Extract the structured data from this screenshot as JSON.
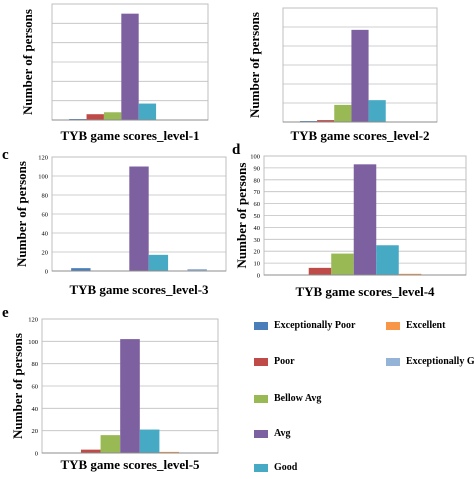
{
  "panel_letters": [
    "",
    "",
    "c",
    "d",
    "e"
  ],
  "chart_data": [
    {
      "type": "bar",
      "title": "TYB game scores_level-1",
      "xlabel": "",
      "ylabel": "Number of persons",
      "categories": [
        "Exceptionally Poor",
        "Poor",
        "Bellow Avg",
        "Avg",
        "Good",
        "Excellent",
        "Exceptionally Good"
      ],
      "values": [
        1,
        6,
        8,
        110,
        17,
        0,
        0
      ],
      "ylim": [
        0,
        120
      ],
      "yticks": [],
      "grid": true
    },
    {
      "type": "bar",
      "title": "TYB game scores_level-2",
      "xlabel": "",
      "ylabel": "Number of persons",
      "categories": [
        "Exceptionally Poor",
        "Poor",
        "Bellow Avg",
        "Avg",
        "Good",
        "Excellent",
        "Exceptionally Good"
      ],
      "values": [
        1,
        2,
        18,
        97,
        23,
        0,
        0
      ],
      "ylim": [
        0,
        120
      ],
      "yticks": [],
      "grid": true
    },
    {
      "type": "bar",
      "title": "TYB game scores_level-3",
      "xlabel": "",
      "ylabel": "Number of persons",
      "categories": [
        "Exceptionally Poor",
        "Poor",
        "Bellow Avg",
        "Avg",
        "Good",
        "Excellent",
        "Exceptionally Good"
      ],
      "values": [
        3,
        0,
        0,
        110,
        17,
        0,
        2
      ],
      "ylim": [
        0,
        120
      ],
      "yticks": [
        0,
        20,
        40,
        60,
        80,
        100,
        120
      ],
      "grid": true
    },
    {
      "type": "bar",
      "title": "TYB game scores_level-4",
      "xlabel": "",
      "ylabel": "Number of persons",
      "categories": [
        "Exceptionally Poor",
        "Poor",
        "Bellow Avg",
        "Avg",
        "Good",
        "Excellent",
        "Exceptionally Good"
      ],
      "values": [
        0,
        6,
        18,
        93,
        25,
        1,
        0
      ],
      "ylim": [
        0,
        100
      ],
      "yticks": [
        0,
        10,
        20,
        30,
        40,
        50,
        60,
        70,
        80,
        90,
        100
      ],
      "grid": true
    },
    {
      "type": "bar",
      "title": "TYB game scores_level-5",
      "xlabel": "",
      "ylabel": "Number of persons",
      "categories": [
        "Exceptionally Poor",
        "Poor",
        "Bellow Avg",
        "Avg",
        "Good",
        "Excellent",
        "Exceptionally Good"
      ],
      "values": [
        0,
        3,
        16,
        102,
        21,
        1,
        0
      ],
      "ylim": [
        0,
        120
      ],
      "yticks": [
        0,
        20,
        40,
        60,
        80,
        100,
        120
      ],
      "grid": true
    }
  ],
  "legend": {
    "items": [
      {
        "label": "Exceptionally Poor",
        "color": "#4a7ebb"
      },
      {
        "label": "Excellent",
        "color": "#f79646"
      },
      {
        "label": "Poor",
        "color": "#be4b48"
      },
      {
        "label": "Exceptionally Good",
        "color": "#95b3d7"
      },
      {
        "label": "Bellow Avg",
        "color": "#98b954"
      },
      {
        "label": "Avg",
        "color": "#7d60a0"
      },
      {
        "label": "Good",
        "color": "#46aac5"
      }
    ]
  },
  "series_colors": [
    "#4a7ebb",
    "#be4b48",
    "#98b954",
    "#7d60a0",
    "#46aac5",
    "#f79646",
    "#95b3d7"
  ]
}
